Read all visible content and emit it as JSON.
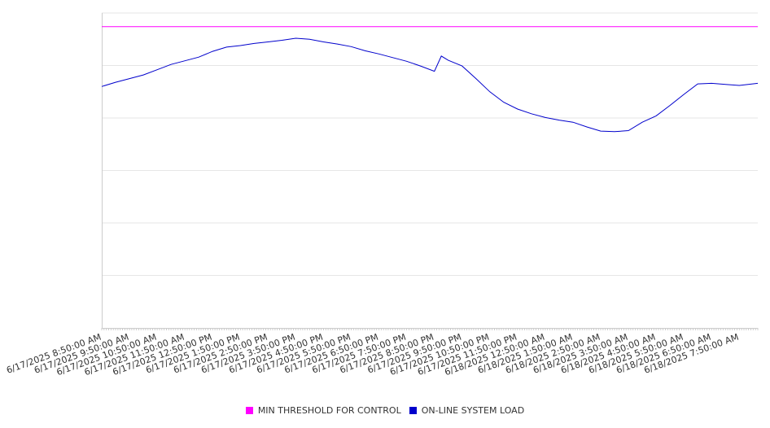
{
  "chart_data": {
    "type": "line",
    "title": "",
    "xlabel": "",
    "ylabel": "",
    "x_ticks": [
      "6/17/2025 8:50:00 AM",
      "6/17/2025 9:50:00 AM",
      "6/17/2025 10:50:00 AM",
      "6/17/2025 11:50:00 AM",
      "6/17/2025 12:50:00 PM",
      "6/17/2025 1:50:00 PM",
      "6/17/2025 2:50:00 PM",
      "6/17/2025 3:50:00 PM",
      "6/17/2025 4:50:00 PM",
      "6/17/2025 5:50:00 PM",
      "6/17/2025 6:50:00 PM",
      "6/17/2025 7:50:00 PM",
      "6/17/2025 8:50:00 PM",
      "6/17/2025 9:50:00 PM",
      "6/17/2025 10:50:00 PM",
      "6/17/2025 11:50:00 PM",
      "6/18/2025 12:50:00 AM",
      "6/18/2025 1:50:00 AM",
      "6/18/2025 2:50:00 AM",
      "6/18/2025 3:50:00 AM",
      "6/18/2025 4:50:00 AM",
      "6/18/2025 5:50:00 AM",
      "6/18/2025 6:50:00 AM",
      "6/18/2025 7:50:00 AM"
    ],
    "x_range": [
      "6/17/2025 8:50:00 AM",
      "6/18/2025 8:30:00 AM"
    ],
    "ylim": [
      0,
      6
    ],
    "grid": true,
    "legend_position": "bottom",
    "series": [
      {
        "name": "MIN THRESHOLD FOR CONTROL",
        "color": "#ff00ff",
        "x": [
          "6/17/2025 8:50:00 AM",
          "6/18/2025 8:30:00 AM"
        ],
        "values": [
          5.74,
          5.74
        ]
      },
      {
        "name": "ON-LINE SYSTEM LOAD",
        "color": "#0000cc",
        "x": [
          "6/17/2025 8:50:00 AM",
          "6/17/2025 9:20:00 AM",
          "6/17/2025 9:50:00 AM",
          "6/17/2025 10:20:00 AM",
          "6/17/2025 10:50:00 AM",
          "6/17/2025 11:20:00 AM",
          "6/17/2025 11:50:00 AM",
          "6/17/2025 12:20:00 PM",
          "6/17/2025 12:50:00 PM",
          "6/17/2025 1:20:00 PM",
          "6/17/2025 1:50:00 PM",
          "6/17/2025 2:20:00 PM",
          "6/17/2025 2:50:00 PM",
          "6/17/2025 3:20:00 PM",
          "6/17/2025 3:50:00 PM",
          "6/17/2025 4:20:00 PM",
          "6/17/2025 4:50:00 PM",
          "6/17/2025 5:20:00 PM",
          "6/17/2025 5:50:00 PM",
          "6/17/2025 6:20:00 PM",
          "6/17/2025 6:50:00 PM",
          "6/17/2025 7:20:00 PM",
          "6/17/2025 7:50:00 PM",
          "6/17/2025 8:20:00 PM",
          "6/17/2025 8:50:00 PM",
          "6/17/2025 9:05:00 PM",
          "6/17/2025 9:20:00 PM",
          "6/17/2025 9:50:00 PM",
          "6/17/2025 10:20:00 PM",
          "6/17/2025 10:50:00 PM",
          "6/17/2025 11:20:00 PM",
          "6/17/2025 11:50:00 PM",
          "6/18/2025 12:20:00 AM",
          "6/18/2025 12:50:00 AM",
          "6/18/2025 1:20:00 AM",
          "6/18/2025 1:50:00 AM",
          "6/18/2025 2:20:00 AM",
          "6/18/2025 2:50:00 AM",
          "6/18/2025 3:20:00 AM",
          "6/18/2025 3:50:00 AM",
          "6/18/2025 4:20:00 AM",
          "6/18/2025 4:50:00 AM",
          "6/18/2025 5:20:00 AM",
          "6/18/2025 5:50:00 AM",
          "6/18/2025 6:20:00 AM",
          "6/18/2025 6:50:00 AM",
          "6/18/2025 7:20:00 AM",
          "6/18/2025 7:50:00 AM",
          "6/18/2025 8:30:00 AM"
        ],
        "values": [
          4.6,
          4.68,
          4.75,
          4.82,
          4.92,
          5.02,
          5.09,
          5.16,
          5.27,
          5.35,
          5.38,
          5.42,
          5.45,
          5.48,
          5.52,
          5.5,
          5.45,
          5.41,
          5.36,
          5.28,
          5.22,
          5.15,
          5.08,
          4.99,
          4.89,
          5.18,
          5.1,
          4.99,
          4.75,
          4.5,
          4.3,
          4.17,
          4.08,
          4.01,
          3.96,
          3.92,
          3.83,
          3.75,
          3.74,
          3.76,
          3.92,
          4.04,
          4.24,
          4.45,
          4.65,
          4.66,
          4.64,
          4.62,
          4.66
        ]
      }
    ]
  }
}
